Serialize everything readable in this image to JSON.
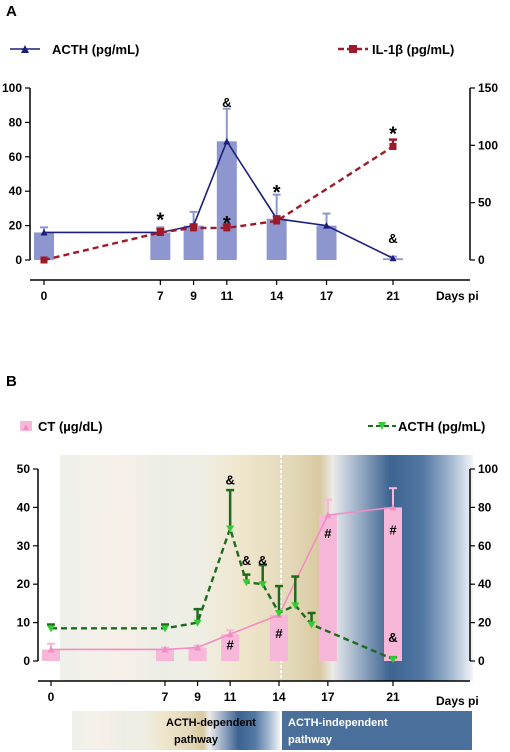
{
  "chart_data": [
    {
      "panel": "A",
      "type": "bar",
      "x": [
        0,
        7,
        9,
        11,
        14,
        17,
        21
      ],
      "xlabel": "Days pi",
      "ylim": [
        0,
        100
      ],
      "ylim_right": [
        0,
        150
      ],
      "yticks_left": [
        0,
        20,
        40,
        60,
        80,
        100
      ],
      "yticks_right": [
        0,
        50,
        100,
        150
      ],
      "series": [
        {
          "name": "ACTH  (pg/mL)",
          "kind": "bar+line",
          "axis": "left",
          "color": "#1a1f7a",
          "bar_color": "#8e96cf",
          "values": [
            16,
            16,
            20,
            69,
            24,
            20,
            1
          ],
          "errors": [
            3,
            3,
            8,
            19,
            14,
            7,
            1
          ]
        },
        {
          "name": "IL-1β (pg/mL)",
          "kind": "line",
          "axis": "right",
          "color": "#9c1a2a",
          "style": "dashed",
          "values": [
            0,
            24,
            28,
            28,
            34,
            99
          ],
          "x": [
            0,
            7,
            9,
            11,
            14,
            21
          ],
          "errors": [
            0,
            3,
            3,
            3,
            4,
            6
          ]
        }
      ],
      "annotations": [
        {
          "x": 7,
          "y": 24,
          "text": "*"
        },
        {
          "x": 11,
          "y": 89,
          "text": "&"
        },
        {
          "x": 11,
          "y": 22,
          "text": "*"
        },
        {
          "x": 14,
          "y": 40,
          "text": "*"
        },
        {
          "x": 21,
          "y": 74,
          "text": "*"
        },
        {
          "x": 21,
          "y": 10,
          "text": "&"
        }
      ],
      "grid": false
    },
    {
      "panel": "B",
      "type": "bar",
      "x": [
        0,
        7,
        9,
        11,
        14,
        17,
        21
      ],
      "xlabel": "Days pi",
      "ylim": [
        0,
        50
      ],
      "ylim_right": [
        0,
        100
      ],
      "yticks_left": [
        0,
        10,
        20,
        30,
        40,
        50
      ],
      "yticks_right": [
        0,
        20,
        40,
        60,
        80,
        100
      ],
      "series": [
        {
          "name": "CT (µg/dL)",
          "kind": "bar+line",
          "axis": "left",
          "color": "#f28cc4",
          "bar_color": "#f7b7d8",
          "values": [
            3,
            3,
            3.5,
            7,
            12,
            38,
            40
          ],
          "errors": [
            1.5,
            0.5,
            0.5,
            1,
            1,
            4,
            5
          ]
        },
        {
          "name": "ACTH (pg/mL)",
          "kind": "line",
          "axis": "right",
          "color": "#1e6b1e",
          "marker_color": "#32cd32",
          "style": "dashed",
          "x": [
            0,
            7,
            9,
            11,
            12,
            13,
            14,
            15,
            16,
            21
          ],
          "values": [
            17,
            17,
            20,
            69,
            41,
            40,
            25,
            29,
            19,
            1
          ],
          "errors": [
            2,
            2,
            7,
            20,
            4,
            10,
            14,
            15,
            6,
            1
          ]
        }
      ],
      "annotations": [
        {
          "x": 11,
          "y": 46,
          "text": "&"
        },
        {
          "x": 12,
          "y": 25,
          "text": "&"
        },
        {
          "x": 13,
          "y": 25,
          "text": "&"
        },
        {
          "x": 11,
          "y": 3,
          "text": "#"
        },
        {
          "x": 14,
          "y": 6,
          "text": "#"
        },
        {
          "x": 17,
          "y": 32,
          "text": "#"
        },
        {
          "x": 21,
          "y": 33,
          "text": "#"
        },
        {
          "x": 21,
          "y": 5,
          "text": "&"
        }
      ],
      "regions": [
        {
          "label": "ACTH-dependent\npathway",
          "from": 0,
          "to": 14
        },
        {
          "label": "ACTH-independent\npathway",
          "from": 14,
          "to": 21
        }
      ],
      "grid": false
    }
  ],
  "labels": {
    "panel_a": "A",
    "panel_b": "B",
    "legend_a_acth": "ACTH  (pg/mL)",
    "legend_a_il": "IL-1β  (pg/mL)",
    "legend_b_ct": "CT (µg/dL)",
    "legend_b_acth": "ACTH (pg/mL)",
    "days_a": "Days pi",
    "days_b": "Days pi",
    "dependent_1": "ACTH-dependent",
    "dependent_2": "pathway",
    "independent_1": "ACTH-independent",
    "independent_2": "pathway"
  }
}
